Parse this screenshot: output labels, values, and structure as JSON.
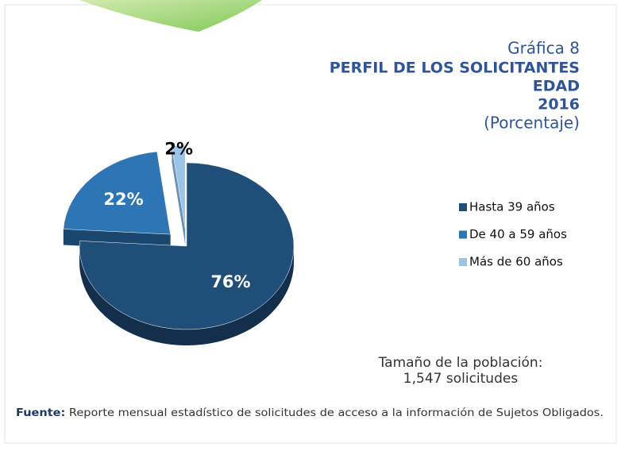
{
  "chart_data": {
    "type": "pie",
    "title": "Gráfica 8",
    "subtitle": [
      "PERFIL DE LOS SOLICITANTES",
      "EDAD",
      "2016"
    ],
    "unit_label": "(Porcentaje)",
    "categories": [
      "Hasta 39 años",
      "De 40 a 59 años",
      "Más de 60 años"
    ],
    "values": [
      76,
      22,
      2
    ],
    "value_labels": [
      "76%",
      "22%",
      "2%"
    ],
    "colors": [
      "#1f4e79",
      "#2e75b6",
      "#9dc3e6"
    ],
    "side_colors": [
      "#132f4b",
      "#1b476f",
      "#6a93b8"
    ],
    "label_colors": [
      "#ffffff",
      "#ffffff",
      "#000000"
    ],
    "legend": "right",
    "note": [
      "Tamaño de la población:",
      "1,547 solicitudes"
    ],
    "source": {
      "label": "Fuente:",
      "text": "Reporte mensual estadístico de solicitudes de acceso a la información de Sujetos Obligados."
    }
  }
}
